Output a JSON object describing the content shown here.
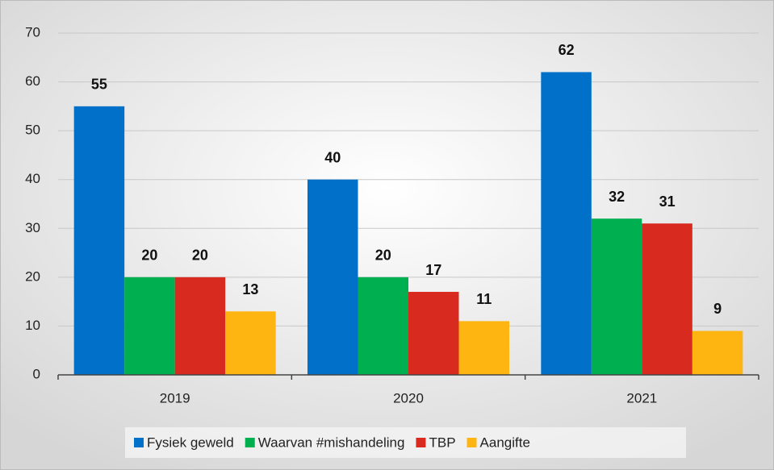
{
  "chart_data": {
    "type": "bar",
    "categories": [
      "2019",
      "2020",
      "2021"
    ],
    "series": [
      {
        "name": "Fysiek geweld",
        "color": "#0070c8",
        "values": [
          55,
          40,
          62
        ]
      },
      {
        "name": "Waarvan #mishandeling",
        "color": "#00b050",
        "values": [
          20,
          20,
          32
        ]
      },
      {
        "name": "TBP",
        "color": "#d82a1e",
        "values": [
          20,
          17,
          31
        ]
      },
      {
        "name": "Aangifte",
        "color": "#ffb511",
        "values": [
          13,
          11,
          9
        ]
      }
    ],
    "ylim": [
      0,
      70
    ],
    "yticks": [
      0,
      10,
      20,
      30,
      40,
      50,
      60,
      70
    ],
    "grid": true,
    "legend": "bottom"
  }
}
